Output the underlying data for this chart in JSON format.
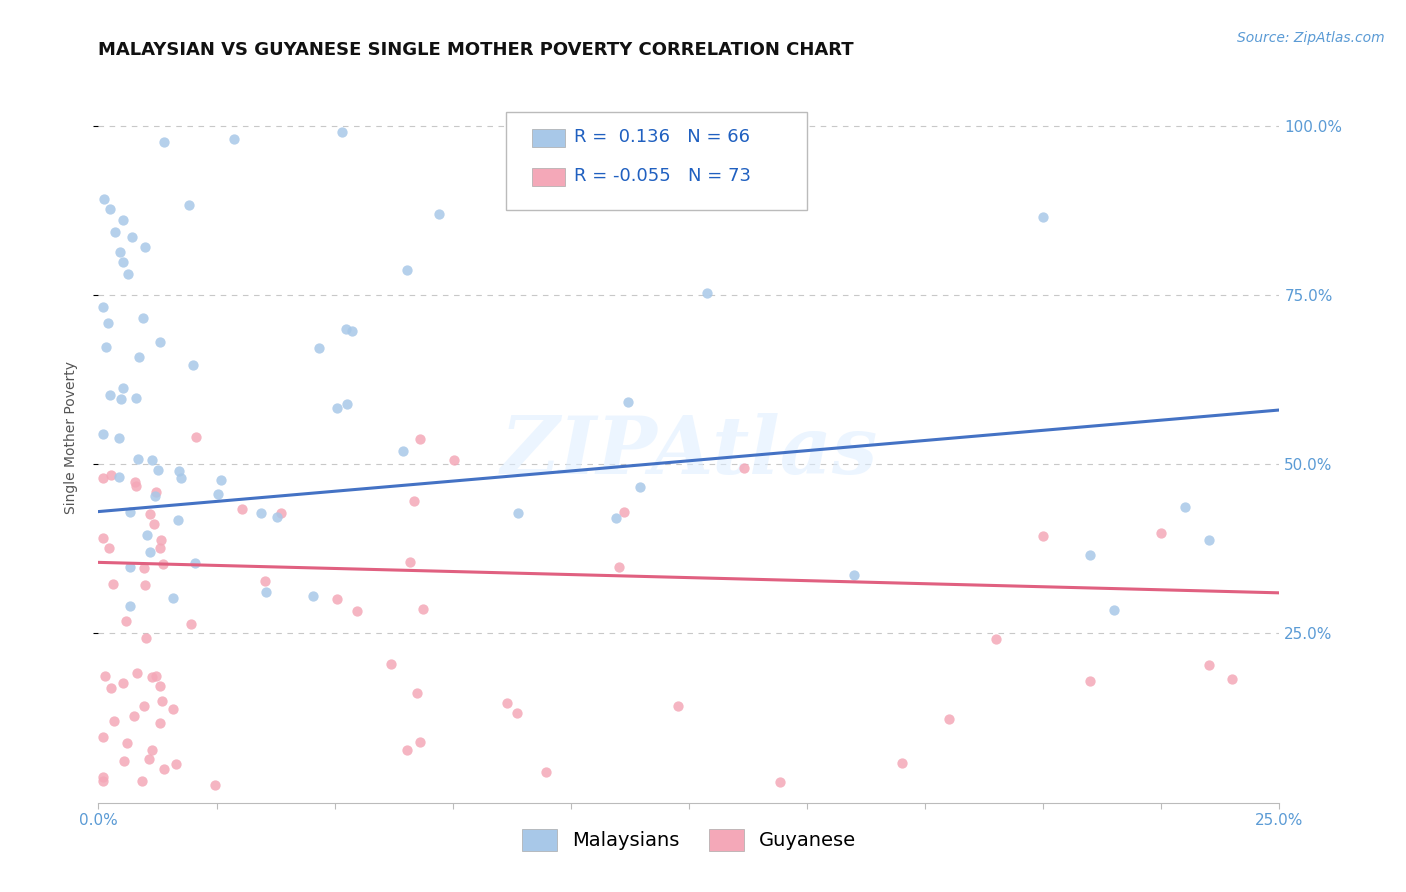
{
  "title": "MALAYSIAN VS GUYANESE SINGLE MOTHER POVERTY CORRELATION CHART",
  "source": "Source: ZipAtlas.com",
  "ylabel": "Single Mother Poverty",
  "ytick_labels": [
    "25.0%",
    "50.0%",
    "75.0%",
    "100.0%"
  ],
  "ytick_values": [
    0.25,
    0.5,
    0.75,
    1.0
  ],
  "xlim": [
    0.0,
    0.25
  ],
  "ylim": [
    0.0,
    1.08
  ],
  "r_malaysian": 0.136,
  "n_malaysian": 66,
  "r_guyanese": -0.055,
  "n_guyanese": 73,
  "color_malaysian": "#A8C8E8",
  "color_guyanese": "#F4A8B8",
  "color_line_malaysian": "#4472C4",
  "color_line_guyanese": "#E06080",
  "legend_label_malaysian": "Malaysians",
  "legend_label_guyanese": "Guyanese",
  "watermark": "ZIPAtlas",
  "background_color": "#FFFFFF",
  "grid_color": "#C8C8C8",
  "title_fontsize": 13,
  "axis_label_fontsize": 10,
  "tick_fontsize": 11,
  "legend_fontsize": 13,
  "mal_line_x0": 0.0,
  "mal_line_y0": 0.43,
  "mal_line_x1": 0.25,
  "mal_line_y1": 0.58,
  "guy_line_x0": 0.0,
  "guy_line_y0": 0.355,
  "guy_line_x1": 0.25,
  "guy_line_y1": 0.31
}
